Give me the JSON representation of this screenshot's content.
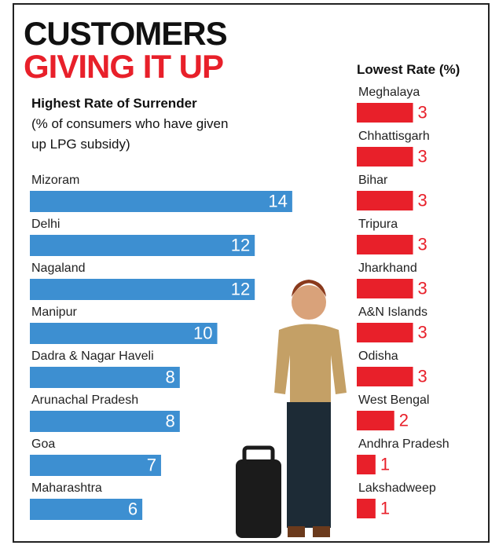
{
  "header": {
    "line1": "CUSTOMERS",
    "line2": "GIVING IT UP"
  },
  "chart_data": [
    {
      "type": "hbar",
      "title": "Highest Rate of Surrender",
      "subtitle": "(% of consumers who have given up LPG subsidy)",
      "categories": [
        "Mizoram",
        "Delhi",
        "Nagaland",
        "Manipur",
        "Dadra & Nagar Haveli",
        "Arunachal Pradesh",
        "Goa",
        "Maharashtra"
      ],
      "values": [
        14,
        12,
        12,
        10,
        8,
        8,
        7,
        6
      ],
      "color": "#3d8fd1",
      "label_color": "#ffffff",
      "label_position": "inside"
    },
    {
      "type": "hbar",
      "title": "Lowest Rate (%)",
      "categories": [
        "Meghalaya",
        "Chhattisgarh",
        "Bihar",
        "Tripura",
        "Jharkhand",
        "A&N Islands",
        "Odisha",
        "West Bengal",
        "Andhra Pradesh",
        "Lakshadweep"
      ],
      "values": [
        3,
        3,
        3,
        3,
        3,
        3,
        3,
        2,
        1,
        1
      ],
      "color": "#e8202a",
      "label_color": "#e8202a",
      "label_position": "outside"
    }
  ]
}
